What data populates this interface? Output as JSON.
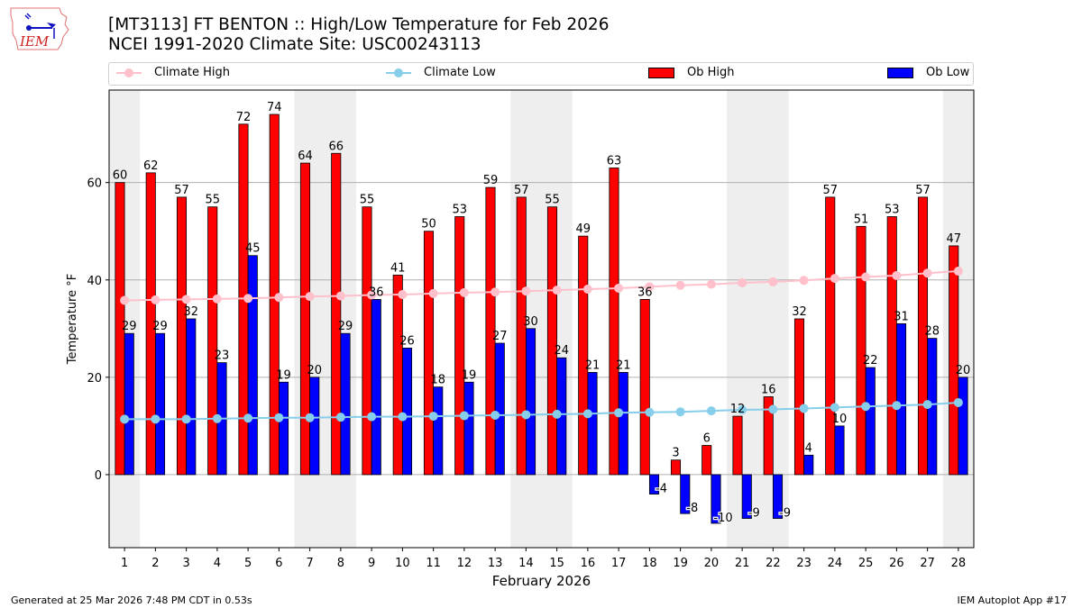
{
  "header": {
    "title_line1": "[MT3113] FT BENTON :: High/Low Temperature for Feb 2026",
    "title_line2": "NCEI 1991-2020 Climate Site: USC00243113",
    "logo_text": "IEM"
  },
  "legend": {
    "items": [
      {
        "label": "Climate High",
        "kind": "line",
        "color": "#ffc0cb"
      },
      {
        "label": "Climate Low",
        "kind": "line",
        "color": "#87ceeb"
      },
      {
        "label": "Ob High",
        "kind": "patch",
        "color": "#ff0000"
      },
      {
        "label": "Ob Low",
        "kind": "patch",
        "color": "#0000ff"
      }
    ]
  },
  "footer": {
    "generated": "Generated at 25 Mar 2026 7:48 PM CDT in 0.53s",
    "app": "IEM Autoplot App #17"
  },
  "chart_data": {
    "type": "bar",
    "title": "[MT3113] FT BENTON :: High/Low Temperature for Feb 2026",
    "subtitle": "NCEI 1991-2020 Climate Site: USC00243113",
    "xlabel": "February 2026",
    "ylabel": "Temperature °F",
    "ylim": [
      -15,
      79
    ],
    "yticks": [
      0,
      20,
      40,
      60
    ],
    "grid": "horizontal",
    "legend_position": "top",
    "categories": [
      "1",
      "2",
      "3",
      "4",
      "5",
      "6",
      "7",
      "8",
      "9",
      "10",
      "11",
      "12",
      "13",
      "14",
      "15",
      "16",
      "17",
      "18",
      "19",
      "20",
      "21",
      "22",
      "23",
      "24",
      "25",
      "26",
      "27",
      "28"
    ],
    "weekend_days": [
      1,
      7,
      8,
      14,
      15,
      21,
      22,
      28
    ],
    "series": [
      {
        "name": "Ob High",
        "type": "bar",
        "color": "#ff0000",
        "values": [
          60,
          62,
          57,
          55,
          72,
          74,
          64,
          66,
          55,
          41,
          50,
          53,
          59,
          57,
          55,
          49,
          63,
          36,
          3,
          6,
          12,
          16,
          32,
          57,
          51,
          53,
          57,
          47
        ]
      },
      {
        "name": "Ob Low",
        "type": "bar",
        "color": "#0000ff",
        "values": [
          29,
          29,
          32,
          23,
          45,
          19,
          20,
          29,
          36,
          26,
          18,
          19,
          27,
          30,
          24,
          21,
          21,
          -4,
          -8,
          -10,
          -9,
          -9,
          4,
          10,
          22,
          31,
          28,
          20
        ]
      },
      {
        "name": "Climate High",
        "type": "line",
        "color": "#ffc0cb",
        "values": [
          35.8,
          35.9,
          36.0,
          36.1,
          36.2,
          36.4,
          36.6,
          36.7,
          36.9,
          37.0,
          37.2,
          37.4,
          37.5,
          37.7,
          37.9,
          38.1,
          38.3,
          38.6,
          38.9,
          39.1,
          39.4,
          39.6,
          39.9,
          40.3,
          40.6,
          40.9,
          41.4,
          41.8
        ]
      },
      {
        "name": "Climate Low",
        "type": "line",
        "color": "#87ceeb",
        "values": [
          11.4,
          11.4,
          11.4,
          11.5,
          11.6,
          11.7,
          11.7,
          11.8,
          11.9,
          11.9,
          12.0,
          12.1,
          12.2,
          12.3,
          12.4,
          12.5,
          12.7,
          12.8,
          12.9,
          13.1,
          13.3,
          13.4,
          13.6,
          13.8,
          14.0,
          14.2,
          14.4,
          14.8
        ]
      }
    ]
  }
}
